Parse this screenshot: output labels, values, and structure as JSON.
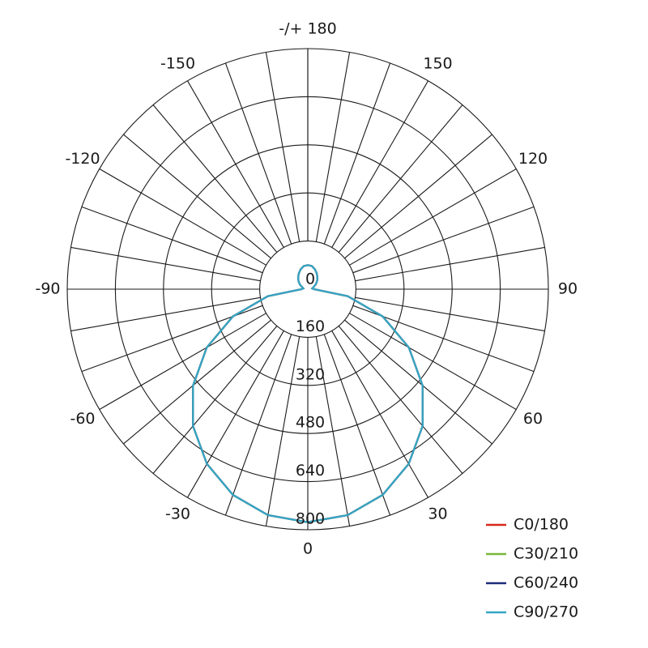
{
  "chart_data": {
    "type": "polar",
    "x": [
      -180,
      -170,
      -160,
      -150,
      -140,
      -130,
      -120,
      -110,
      -100,
      -90,
      -80,
      -70,
      -60,
      -50,
      -40,
      -30,
      -20,
      -10,
      0,
      10,
      20,
      30,
      40,
      50,
      60,
      70,
      80,
      90,
      100,
      110,
      120,
      130,
      140,
      150,
      160,
      170,
      180
    ],
    "series": [
      {
        "name": "C0/180",
        "color": "#d8281c",
        "values": [
          80,
          78,
          70,
          60,
          50,
          40,
          30,
          20,
          15,
          20,
          135,
          265,
          388,
          498,
          594,
          671,
          728,
          763,
          775,
          763,
          728,
          671,
          594,
          498,
          388,
          265,
          135,
          20,
          15,
          20,
          30,
          40,
          50,
          60,
          70,
          78,
          80
        ]
      },
      {
        "name": "C30/210",
        "color": "#7ab83a",
        "values": [
          80,
          78,
          70,
          60,
          50,
          40,
          30,
          20,
          15,
          20,
          135,
          265,
          388,
          498,
          594,
          671,
          728,
          763,
          775,
          763,
          728,
          671,
          594,
          498,
          388,
          265,
          135,
          20,
          15,
          20,
          30,
          40,
          50,
          60,
          70,
          78,
          80
        ]
      },
      {
        "name": "C60/240",
        "color": "#1e2b7a",
        "values": [
          80,
          78,
          70,
          60,
          50,
          40,
          30,
          20,
          15,
          20,
          135,
          265,
          388,
          498,
          594,
          671,
          728,
          763,
          775,
          763,
          728,
          671,
          594,
          498,
          388,
          265,
          135,
          20,
          15,
          20,
          30,
          40,
          50,
          60,
          70,
          78,
          80
        ]
      },
      {
        "name": "C90/270",
        "color": "#35a6c4",
        "values": [
          80,
          78,
          70,
          60,
          50,
          40,
          30,
          20,
          15,
          20,
          135,
          265,
          388,
          498,
          594,
          671,
          728,
          763,
          775,
          763,
          728,
          671,
          594,
          498,
          388,
          265,
          135,
          20,
          15,
          20,
          30,
          40,
          50,
          60,
          70,
          78,
          80
        ]
      }
    ],
    "rlim": [
      0,
      800
    ],
    "rticks": [
      0,
      160,
      320,
      480,
      640,
      800
    ],
    "xticks": [
      -150,
      -120,
      -90,
      -60,
      -30,
      0,
      30,
      60,
      90,
      120,
      150,
      {
        "value": 180,
        "label": "-/+ 180"
      }
    ],
    "legend": "lower-right"
  }
}
